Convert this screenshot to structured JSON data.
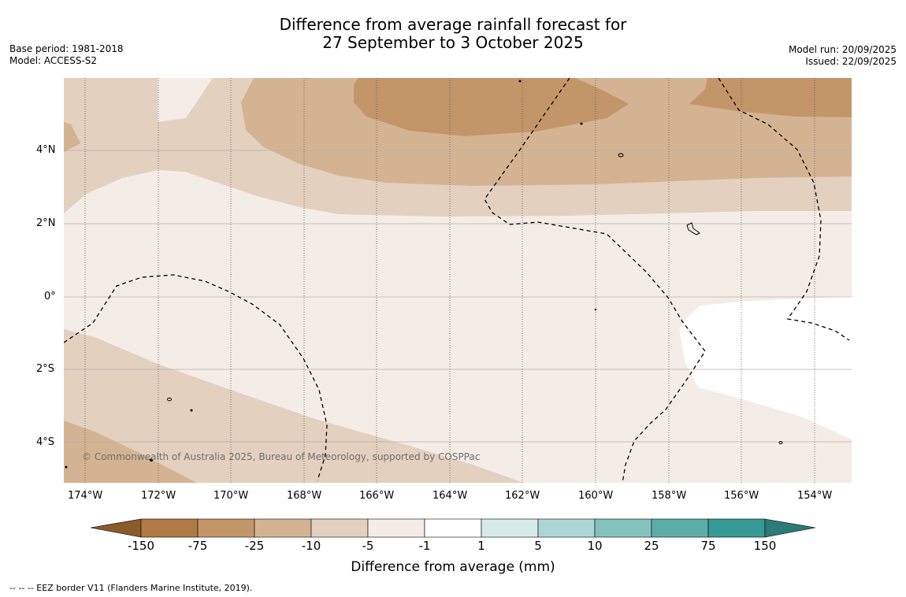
{
  "title_line1": "Difference from average rainfall forecast for",
  "title_line2": "27 September to 3 October 2025",
  "base_period": "Base period: 1981-2018",
  "model": "Model: ACCESS-S2",
  "model_run": "Model run: 20/09/2025",
  "issued": "Issued: 22/09/2025",
  "copyright": "© Commonwealth of Australia 2025, Bureau of Meteorology, supported by COSPPac",
  "lat_ticks": [
    "4°N",
    "2°N",
    "0°",
    "2°S",
    "4°S"
  ],
  "lon_ticks": [
    "174°W",
    "172°W",
    "170°W",
    "168°W",
    "166°W",
    "164°W",
    "162°W",
    "160°W",
    "158°W",
    "156°W",
    "154°W"
  ],
  "colorbar": {
    "title": "Difference from average (mm)",
    "labels": [
      "-150",
      "-75",
      "-25",
      "-10",
      "-5",
      "-1",
      "1",
      "5",
      "10",
      "25",
      "75",
      "150"
    ],
    "colors": [
      "#8b5a2b",
      "#b07a45",
      "#c29669",
      "#d4b392",
      "#e3d0bf",
      "#f4ede7",
      "#ffffff",
      "#d6ebe9",
      "#acd6d4",
      "#84c2be",
      "#5cadaa",
      "#369a96",
      "#2b7b78"
    ]
  },
  "footer": "--  --  -- EEZ border V11 (Flanders Marine Institute, 2019)."
}
